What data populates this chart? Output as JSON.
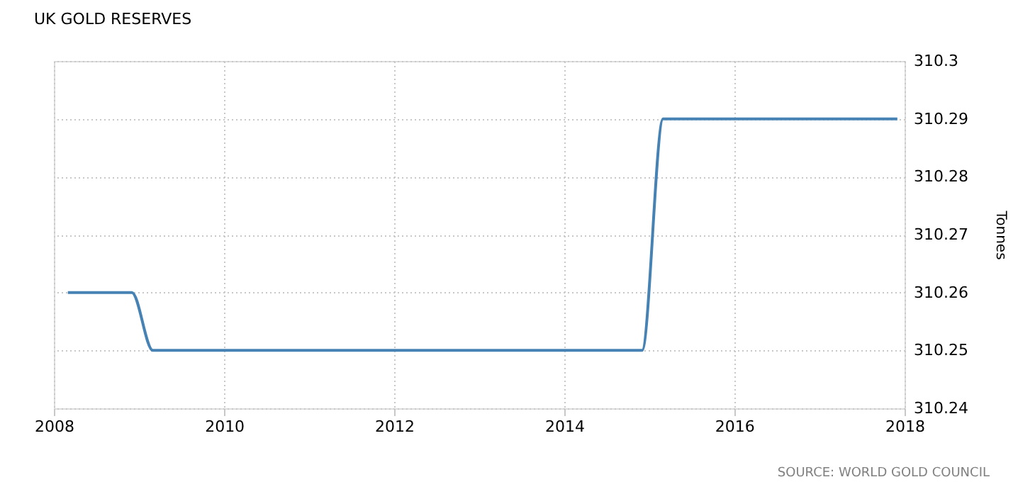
{
  "chart_data": {
    "type": "line",
    "title": "UK GOLD RESERVES",
    "ylabel": "Tonnes",
    "x": [
      "2008-03-01",
      "2008-06-01",
      "2008-09-01",
      "2008-12-01",
      "2009-03-01",
      "2009-06-01",
      "2014-09-01",
      "2014-12-01",
      "2015-03-01",
      "2015-06-01",
      "2017-12-01"
    ],
    "series": [
      {
        "color": "#4682b4",
        "values": [
          310.26,
          310.26,
          310.26,
          310.26,
          310.25,
          310.25,
          310.25,
          310.25,
          310.29,
          310.29,
          310.29
        ]
      }
    ],
    "xlim": [
      "2008-01-01",
      "2018-01-01"
    ],
    "xticks": [
      "2008",
      "2010",
      "2012",
      "2014",
      "2016",
      "2018"
    ],
    "ylim": [
      310.24,
      310.3
    ],
    "yticks": [
      310.24,
      310.25,
      310.26,
      310.27,
      310.28,
      310.29,
      {
        "value": 310.3,
        "label": "310.3"
      }
    ],
    "grid": true,
    "marker": "none",
    "line_style": "solid",
    "annotations": [
      "SOURCE: WORLD GOLD COUNCIL"
    ]
  }
}
